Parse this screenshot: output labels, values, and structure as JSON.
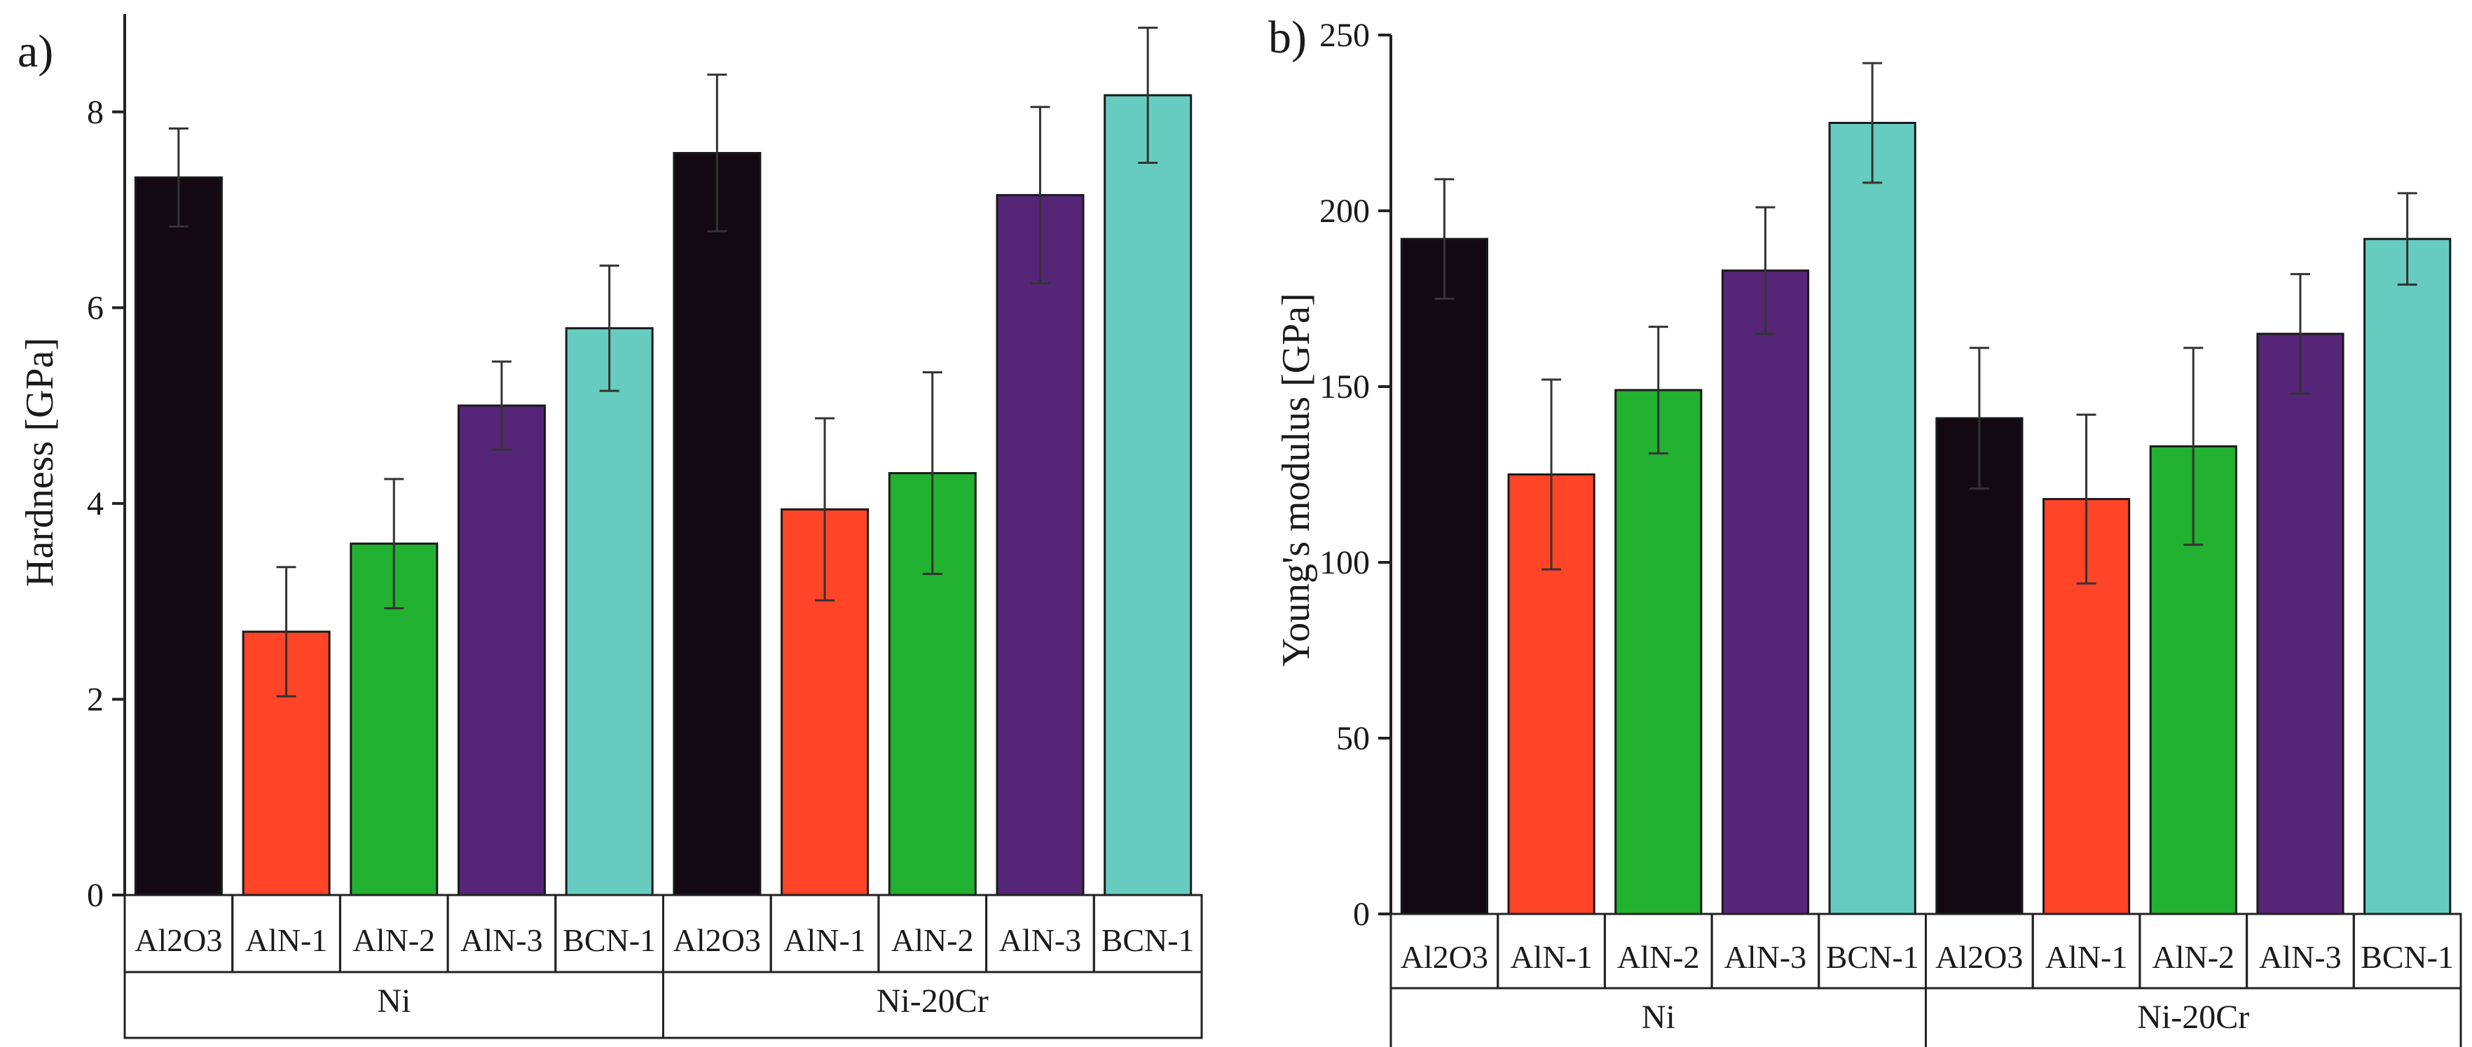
{
  "chart_data": [
    {
      "panel_label": "a)",
      "type": "bar",
      "ylabel": "Hardness [GPa]",
      "ylim": [
        0,
        9
      ],
      "yticks": [
        0,
        2,
        4,
        6,
        8
      ],
      "groups": [
        "Ni",
        "Ni-20Cr"
      ],
      "categories": [
        "Al2O3",
        "AlN-1",
        "AlN-2",
        "AlN-3",
        "BCN-1"
      ],
      "colors": [
        "#120a10",
        "#ff4428",
        "#22b130",
        "#552577",
        "#66ccc0"
      ],
      "series": [
        {
          "group": "Ni",
          "values": [
            7.33,
            2.69,
            3.59,
            5.0,
            5.79
          ],
          "errors": [
            0.5,
            0.66,
            0.66,
            0.45,
            0.64
          ]
        },
        {
          "group": "Ni-20Cr",
          "values": [
            7.58,
            3.94,
            4.31,
            7.15,
            8.17
          ],
          "errors": [
            0.8,
            0.93,
            1.03,
            0.9,
            0.69
          ]
        }
      ],
      "grid": false
    },
    {
      "panel_label": "b)",
      "type": "bar",
      "ylabel": "Young's modulus [GPa]",
      "ylim": [
        0,
        250
      ],
      "yticks": [
        0,
        50,
        100,
        150,
        200,
        250
      ],
      "groups": [
        "Ni",
        "Ni-20Cr"
      ],
      "categories": [
        "Al2O3",
        "AlN-1",
        "AlN-2",
        "AlN-3",
        "BCN-1"
      ],
      "colors": [
        "#120a10",
        "#ff4428",
        "#22b130",
        "#552577",
        "#66ccc0"
      ],
      "series": [
        {
          "group": "Ni",
          "values": [
            192,
            125,
            149,
            183,
            225
          ],
          "errors": [
            17,
            27,
            18,
            18,
            17
          ]
        },
        {
          "group": "Ni-20Cr",
          "values": [
            141,
            118,
            133,
            165,
            192
          ],
          "errors": [
            20,
            24,
            28,
            17,
            13
          ]
        }
      ],
      "grid": false
    }
  ]
}
